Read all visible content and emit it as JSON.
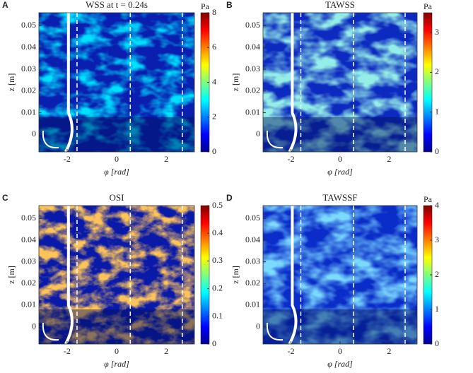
{
  "chart_data": [
    {
      "type": "heatmap",
      "panel": "A",
      "title": "WSS at t = 0.24s",
      "xlabel": "φ [rad]",
      "ylabel": "z [m]",
      "xlim": [
        -3.14,
        3.14
      ],
      "xticks": [
        -2,
        0,
        2
      ],
      "ylim": [
        -0.008,
        0.056
      ],
      "yticks": [
        0,
        0.01,
        0.02,
        0.03,
        0.04,
        0.05
      ],
      "vlines": [
        -1.6,
        0.55,
        2.65
      ],
      "colormap": "jet",
      "colorbar_unit": "Pa",
      "clim": [
        0,
        8
      ],
      "cticks": [
        0,
        2,
        4,
        6,
        8
      ]
    },
    {
      "type": "heatmap",
      "panel": "B",
      "title": "TAWSS",
      "xlabel": "φ [rad]",
      "ylabel": "z [m]",
      "xlim": [
        -3.14,
        3.14
      ],
      "xticks": [
        -2,
        0,
        2
      ],
      "ylim": [
        -0.008,
        0.056
      ],
      "yticks": [
        0,
        0.01,
        0.02,
        0.03,
        0.04,
        0.05
      ],
      "vlines": [
        -1.6,
        0.55,
        2.65
      ],
      "colormap": "jet",
      "colorbar_unit": "Pa",
      "clim": [
        0,
        3.5
      ],
      "cticks": [
        0,
        1,
        2,
        3
      ]
    },
    {
      "type": "heatmap",
      "panel": "C",
      "title": "OSI",
      "xlabel": "φ [rad]",
      "ylabel": "z [m]",
      "xlim": [
        -3.14,
        3.14
      ],
      "xticks": [
        -2,
        0,
        2
      ],
      "ylim": [
        -0.008,
        0.056
      ],
      "yticks": [
        0,
        0.01,
        0.02,
        0.03,
        0.04,
        0.05
      ],
      "vlines": [
        -1.6,
        0.55,
        2.65
      ],
      "colormap": "jet",
      "clim": [
        0,
        0.5
      ],
      "cticks": [
        0,
        0.1,
        0.2,
        0.3,
        0.4,
        0.5
      ]
    },
    {
      "type": "heatmap",
      "panel": "D",
      "title": "TAWSSF",
      "xlabel": "φ [rad]",
      "ylabel": "z [m]",
      "xlim": [
        -3.14,
        3.14
      ],
      "xticks": [
        -2,
        0,
        2
      ],
      "ylim": [
        -0.008,
        0.056
      ],
      "yticks": [
        0,
        0.01,
        0.02,
        0.03,
        0.04,
        0.05
      ],
      "vlines": [
        -1.6,
        0.55,
        2.65
      ],
      "colormap": "jet",
      "colorbar_unit": "Pa",
      "clim": [
        0,
        4
      ],
      "cticks": [
        0,
        1,
        2,
        3,
        4
      ]
    }
  ]
}
